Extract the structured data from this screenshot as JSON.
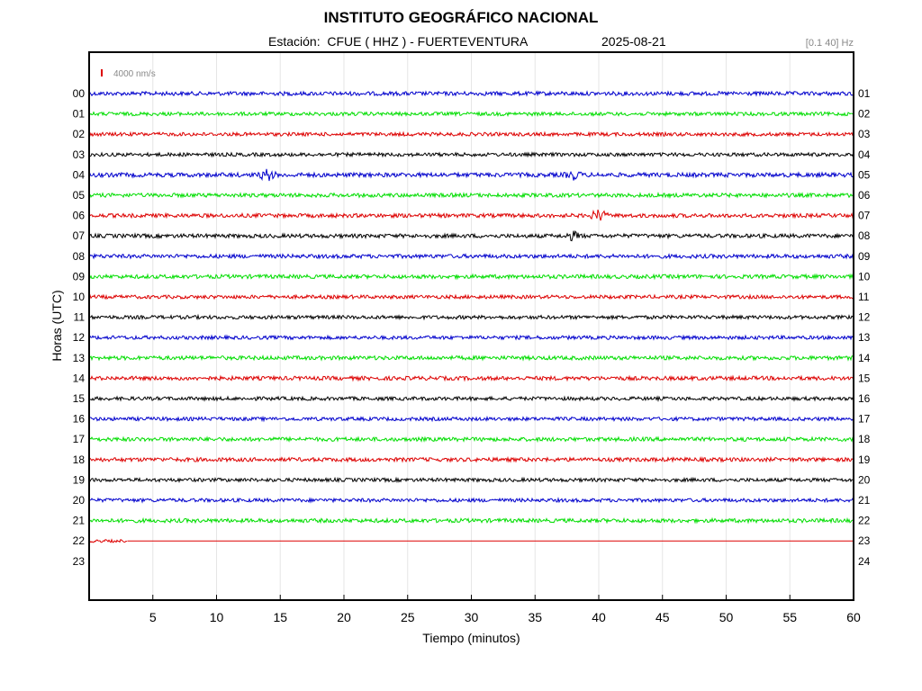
{
  "header": {
    "title": "INSTITUTO GEOGRÁFICO NACIONAL",
    "station_label": "Estación:  CFUE ( HHZ ) - FUERTEVENTURA",
    "date": "2025-08-21",
    "filter": "[0.1 40] Hz"
  },
  "chart_data": {
    "type": "line",
    "title": "INSTITUTO GEOGRÁFICO NACIONAL",
    "xlabel": "Tiempo (minutos)",
    "ylabel": "Horas (UTC)",
    "xlim": [
      0,
      60
    ],
    "x_ticks": [
      "5",
      "10",
      "15",
      "20",
      "25",
      "30",
      "35",
      "40",
      "45",
      "50",
      "55",
      "60"
    ],
    "x_tick_values": [
      5,
      10,
      15,
      20,
      25,
      30,
      35,
      40,
      45,
      50,
      55,
      60
    ],
    "y_left_labels": [
      "00",
      "01",
      "02",
      "03",
      "04",
      "05",
      "06",
      "07",
      "08",
      "09",
      "10",
      "11",
      "12",
      "13",
      "14",
      "15",
      "16",
      "17",
      "18",
      "19",
      "20",
      "21",
      "22",
      "23"
    ],
    "y_right_labels": [
      "01",
      "02",
      "03",
      "04",
      "05",
      "06",
      "07",
      "08",
      "09",
      "10",
      "11",
      "12",
      "13",
      "14",
      "15",
      "16",
      "17",
      "18",
      "19",
      "20",
      "21",
      "22",
      "23",
      "24"
    ],
    "scale_label": "4000 nm/s",
    "grid": true,
    "series_colors": [
      "#0000cc",
      "#00dd00",
      "#dd0000",
      "#000000"
    ],
    "traces": [
      {
        "hour": "00",
        "color": "#0000cc",
        "amplitude": 2.2,
        "end_minute": 60
      },
      {
        "hour": "01",
        "color": "#00dd00",
        "amplitude": 2.0,
        "end_minute": 60
      },
      {
        "hour": "02",
        "color": "#dd0000",
        "amplitude": 2.0,
        "end_minute": 60
      },
      {
        "hour": "03",
        "color": "#000000",
        "amplitude": 2.0,
        "end_minute": 60
      },
      {
        "hour": "04",
        "color": "#0000cc",
        "amplitude": 2.4,
        "end_minute": 60,
        "events": [
          {
            "minute": 14,
            "amp": 5.5
          },
          {
            "minute": 38,
            "amp": 4
          }
        ]
      },
      {
        "hour": "05",
        "color": "#00dd00",
        "amplitude": 2.2,
        "end_minute": 60
      },
      {
        "hour": "06",
        "color": "#dd0000",
        "amplitude": 2.2,
        "end_minute": 60,
        "events": [
          {
            "minute": 40,
            "amp": 6
          }
        ]
      },
      {
        "hour": "07",
        "color": "#000000",
        "amplitude": 2.2,
        "end_minute": 60,
        "events": [
          {
            "minute": 38,
            "amp": 4
          }
        ]
      },
      {
        "hour": "08",
        "color": "#0000cc",
        "amplitude": 2.2,
        "end_minute": 60
      },
      {
        "hour": "09",
        "color": "#00dd00",
        "amplitude": 2.2,
        "end_minute": 60
      },
      {
        "hour": "10",
        "color": "#dd0000",
        "amplitude": 2.0,
        "end_minute": 60
      },
      {
        "hour": "11",
        "color": "#000000",
        "amplitude": 2.0,
        "end_minute": 60
      },
      {
        "hour": "12",
        "color": "#0000cc",
        "amplitude": 2.0,
        "end_minute": 60
      },
      {
        "hour": "13",
        "color": "#00dd00",
        "amplitude": 2.2,
        "end_minute": 60
      },
      {
        "hour": "14",
        "color": "#dd0000",
        "amplitude": 2.2,
        "end_minute": 60
      },
      {
        "hour": "15",
        "color": "#000000",
        "amplitude": 2.0,
        "end_minute": 60
      },
      {
        "hour": "16",
        "color": "#0000cc",
        "amplitude": 2.0,
        "end_minute": 60
      },
      {
        "hour": "17",
        "color": "#00dd00",
        "amplitude": 2.2,
        "end_minute": 60
      },
      {
        "hour": "18",
        "color": "#dd0000",
        "amplitude": 2.2,
        "end_minute": 60
      },
      {
        "hour": "19",
        "color": "#000000",
        "amplitude": 2.0,
        "end_minute": 60
      },
      {
        "hour": "20",
        "color": "#0000cc",
        "amplitude": 2.0,
        "end_minute": 60
      },
      {
        "hour": "21",
        "color": "#00dd00",
        "amplitude": 2.2,
        "end_minute": 60
      },
      {
        "hour": "22",
        "color": "#dd0000",
        "amplitude": 1.6,
        "end_minute": 3,
        "flat_until_minute": 60
      }
    ]
  }
}
